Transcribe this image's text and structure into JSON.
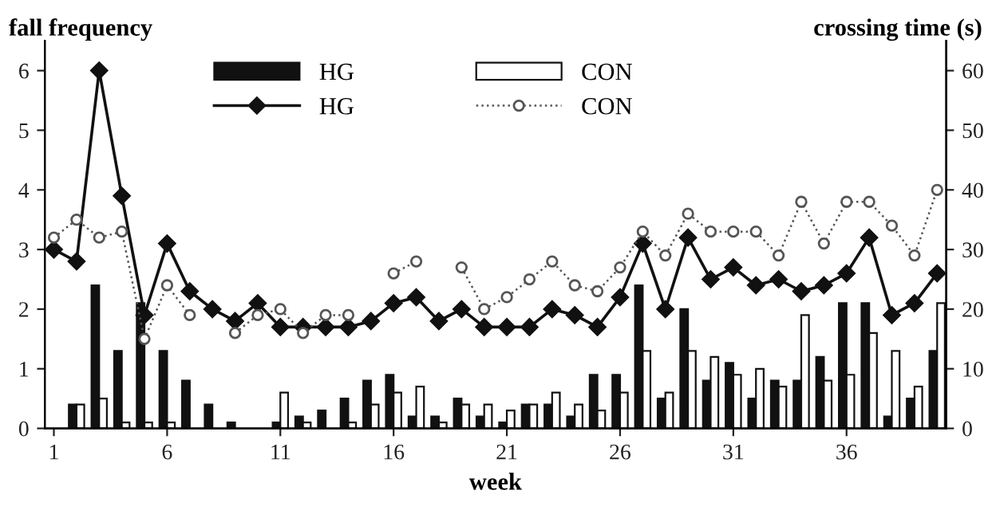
{
  "chart_data": {
    "type": "bar",
    "xlabel": "week",
    "ylabel": "fall frequency",
    "y2label": "crossing time (s)",
    "x": [
      1,
      2,
      3,
      4,
      5,
      6,
      7,
      8,
      9,
      10,
      11,
      12,
      13,
      14,
      15,
      16,
      17,
      18,
      19,
      20,
      21,
      22,
      23,
      24,
      25,
      26,
      27,
      28,
      29,
      30,
      31,
      32,
      33,
      34,
      35,
      36,
      37,
      38,
      39,
      40
    ],
    "xlim": [
      0.6,
      40.4
    ],
    "xticks": [
      1,
      6,
      11,
      16,
      21,
      26,
      31,
      36
    ],
    "ylim": [
      0,
      6.5
    ],
    "yticks": [
      0,
      1,
      2,
      3,
      4,
      5,
      6
    ],
    "y2lim": [
      0,
      65
    ],
    "y2ticks": [
      0,
      10,
      20,
      30,
      40,
      50,
      60
    ],
    "legend": "top",
    "grid": false,
    "series": [
      {
        "name": "HG",
        "color": "#111111",
        "values": [
          0,
          0.4,
          2.4,
          1.3,
          2.1,
          1.3,
          0.8,
          0.4,
          0.1,
          0,
          0.1,
          0.2,
          0.3,
          0.5,
          0.8,
          0.9,
          0.2,
          0.2,
          0.5,
          0.2,
          0.1,
          0.4,
          0.4,
          0.2,
          0.9,
          0.9,
          2.4,
          0.5,
          2.0,
          0.8,
          1.1,
          0.5,
          0.8,
          0.8,
          1.2,
          2.1,
          2.1,
          0.2,
          0.5,
          1.3
        ]
      },
      {
        "name": "CON",
        "color": "#ffffff",
        "values": [
          0,
          0.4,
          0.5,
          0.1,
          0.1,
          0.1,
          0,
          0,
          0,
          0,
          0.6,
          0.1,
          0,
          0.1,
          0.4,
          0.6,
          0.7,
          0.1,
          0.4,
          0.4,
          0.3,
          0.4,
          0.6,
          0.4,
          0.3,
          0.6,
          1.3,
          0.6,
          1.3,
          1.2,
          0.9,
          1.0,
          0.7,
          1.9,
          0.8,
          0.9,
          1.6,
          1.3,
          0.7,
          2.1
        ]
      },
      {
        "name": "HG",
        "type": "line",
        "axis": "y2",
        "color": "#111111",
        "marker": "diamond",
        "line_style": "solid",
        "values": [
          30,
          28,
          60,
          39,
          19,
          31,
          23,
          20,
          18,
          21,
          17,
          17,
          17,
          17,
          18,
          21,
          22,
          18,
          20,
          17,
          17,
          17,
          20,
          19,
          17,
          22,
          31,
          20,
          32,
          25,
          27,
          24,
          25,
          23,
          24,
          26,
          32,
          19,
          21,
          26
        ]
      },
      {
        "name": "CON",
        "type": "line",
        "axis": "y2",
        "color": "#555555",
        "marker": "circle",
        "line_style": "dotted",
        "values": [
          32,
          35,
          32,
          33,
          15,
          24,
          19,
          null,
          16,
          19,
          20,
          16,
          19,
          19,
          null,
          26,
          28,
          null,
          27,
          20,
          22,
          25,
          28,
          24,
          23,
          27,
          33,
          29,
          36,
          33,
          33,
          33,
          29,
          38,
          31,
          38,
          38,
          34,
          29,
          40
        ]
      }
    ]
  }
}
